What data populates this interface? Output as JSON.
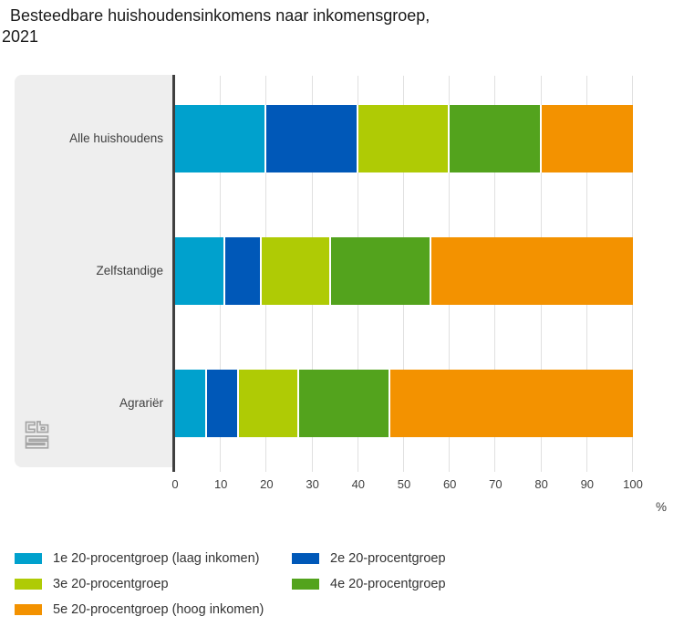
{
  "title": {
    "line1": "Besteedbare huishoudensinkomens naar inkomensgroep,",
    "line2": "2021"
  },
  "icons": {
    "logo": "cbs-logo"
  },
  "colors": {
    "panel_background": "#eeeeee",
    "axis_line": "#3f3f3f",
    "gridline": "#e0e0e0",
    "text": "#404040",
    "logo": "#a5a5a5"
  },
  "x_axis": {
    "ticks": [
      0,
      10,
      20,
      30,
      40,
      50,
      60,
      70,
      80,
      90,
      100
    ],
    "unit": "%"
  },
  "chart_data": {
    "type": "bar",
    "orientation": "horizontal-stacked",
    "title": "Besteedbare huishoudensinkomens naar inkomensgroep, 2021",
    "categories": [
      "Alle huishoudens",
      "Zelfstandige",
      "Agrariër"
    ],
    "series": [
      {
        "name": "1e 20-procentgroep (laag inkomen)",
        "color": "#00a1cd",
        "values": [
          20,
          11,
          7
        ]
      },
      {
        "name": "2e 20-procentgroep",
        "color": "#0058b8",
        "values": [
          20,
          8,
          7
        ]
      },
      {
        "name": "3e 20-procentgroep",
        "color": "#afcb05",
        "values": [
          20,
          15,
          13
        ]
      },
      {
        "name": "4e 20-procentgroep",
        "color": "#53a31d",
        "values": [
          20,
          22,
          20
        ]
      },
      {
        "name": "5e 20-procentgroep (hoog inkomen)",
        "color": "#f39200",
        "values": [
          20,
          44,
          53
        ]
      }
    ],
    "xlabel": "%",
    "xlim": [
      0,
      100
    ],
    "grid": true,
    "legend_position": "bottom"
  }
}
